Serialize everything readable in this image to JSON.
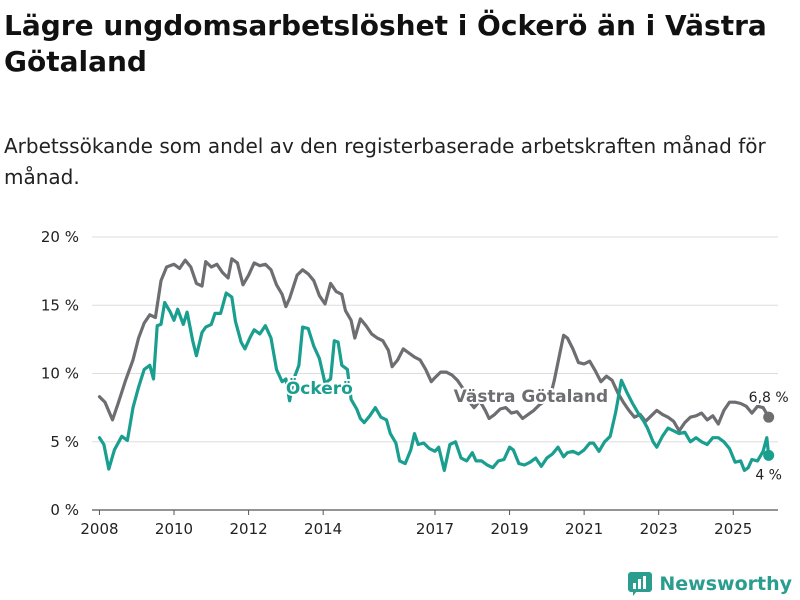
{
  "title": "Lägre ungdomsarbetslöshet i Öckerö än i Västra Götaland",
  "subtitle": "Arbetssökande som andel av den registerbaserade arbetskraften månad för månad.",
  "brand": "Newsworthy",
  "colors": {
    "ockero": "#1a9e8f",
    "vg": "#6e6e72",
    "grid": "#dddddd",
    "axis": "#555555"
  },
  "chart_data": {
    "type": "line",
    "title": "Lägre ungdomsarbetslöshet i Öckerö än i Västra Götaland",
    "subtitle": "Arbetssökande som andel av den registerbaserade arbetskraften månad för månad.",
    "xlabel": "",
    "ylabel": "",
    "ylim": [
      0,
      20
    ],
    "xlim": [
      2007.8,
      2026.2
    ],
    "grid": true,
    "y_ticks": [
      {
        "value": 0,
        "label": "0 %"
      },
      {
        "value": 5,
        "label": "5 %"
      },
      {
        "value": 10,
        "label": "10 %"
      },
      {
        "value": 15,
        "label": "15 %"
      },
      {
        "value": 20,
        "label": "20 %"
      }
    ],
    "x_ticks": [
      {
        "value": 2008,
        "label": "2008"
      },
      {
        "value": 2010,
        "label": "2010"
      },
      {
        "value": 2012,
        "label": "2012"
      },
      {
        "value": 2014,
        "label": "2014"
      },
      {
        "value": 2017,
        "label": "2017"
      },
      {
        "value": 2019,
        "label": "2019"
      },
      {
        "value": 2021,
        "label": "2021"
      },
      {
        "value": 2023,
        "label": "2023"
      },
      {
        "value": 2025,
        "label": "2025"
      }
    ],
    "series": [
      {
        "name": "Västra Götaland",
        "color": "#6e6e72",
        "label_at": {
          "x": 2017.5,
          "y": 7.9
        },
        "end_label": "6,8 %",
        "points": [
          [
            2008.0,
            8.3
          ],
          [
            2008.15,
            7.9
          ],
          [
            2008.35,
            6.6
          ],
          [
            2008.5,
            7.8
          ],
          [
            2008.7,
            9.5
          ],
          [
            2008.9,
            11.0
          ],
          [
            2009.05,
            12.6
          ],
          [
            2009.2,
            13.7
          ],
          [
            2009.35,
            14.3
          ],
          [
            2009.5,
            14.1
          ],
          [
            2009.65,
            16.8
          ],
          [
            2009.8,
            17.8
          ],
          [
            2010.0,
            18.0
          ],
          [
            2010.15,
            17.7
          ],
          [
            2010.3,
            18.3
          ],
          [
            2010.45,
            17.8
          ],
          [
            2010.6,
            16.6
          ],
          [
            2010.75,
            16.4
          ],
          [
            2010.85,
            18.2
          ],
          [
            2011.0,
            17.8
          ],
          [
            2011.15,
            18.0
          ],
          [
            2011.3,
            17.4
          ],
          [
            2011.45,
            17.0
          ],
          [
            2011.55,
            18.4
          ],
          [
            2011.7,
            18.1
          ],
          [
            2011.85,
            16.5
          ],
          [
            2012.0,
            17.2
          ],
          [
            2012.15,
            18.1
          ],
          [
            2012.3,
            17.9
          ],
          [
            2012.45,
            18.0
          ],
          [
            2012.6,
            17.6
          ],
          [
            2012.75,
            16.5
          ],
          [
            2012.9,
            15.8
          ],
          [
            2013.0,
            14.9
          ],
          [
            2013.1,
            15.5
          ],
          [
            2013.3,
            17.2
          ],
          [
            2013.45,
            17.6
          ],
          [
            2013.6,
            17.3
          ],
          [
            2013.75,
            16.8
          ],
          [
            2013.9,
            15.7
          ],
          [
            2014.05,
            15.1
          ],
          [
            2014.2,
            16.6
          ],
          [
            2014.35,
            16.0
          ],
          [
            2014.5,
            15.8
          ],
          [
            2014.6,
            14.6
          ],
          [
            2014.75,
            13.9
          ],
          [
            2014.85,
            12.6
          ],
          [
            2015.0,
            14.0
          ],
          [
            2015.15,
            13.5
          ],
          [
            2015.3,
            12.9
          ],
          [
            2015.45,
            12.6
          ],
          [
            2015.6,
            12.4
          ],
          [
            2015.75,
            11.7
          ],
          [
            2015.85,
            10.5
          ],
          [
            2016.0,
            11.0
          ],
          [
            2016.15,
            11.8
          ],
          [
            2016.3,
            11.5
          ],
          [
            2016.45,
            11.2
          ],
          [
            2016.6,
            11.0
          ],
          [
            2016.75,
            10.3
          ],
          [
            2016.9,
            9.4
          ],
          [
            2017.0,
            9.7
          ],
          [
            2017.15,
            10.1
          ],
          [
            2017.3,
            10.1
          ],
          [
            2017.45,
            9.9
          ],
          [
            2017.6,
            9.5
          ],
          [
            2017.75,
            8.9
          ],
          [
            2017.9,
            8.0
          ],
          [
            2018.05,
            7.5
          ],
          [
            2018.2,
            8.0
          ],
          [
            2018.35,
            7.3
          ],
          [
            2018.45,
            6.7
          ],
          [
            2018.6,
            7.0
          ],
          [
            2018.75,
            7.4
          ],
          [
            2018.9,
            7.5
          ],
          [
            2019.05,
            7.1
          ],
          [
            2019.2,
            7.2
          ],
          [
            2019.35,
            6.7
          ],
          [
            2019.5,
            7.0
          ],
          [
            2019.65,
            7.3
          ],
          [
            2019.8,
            7.7
          ],
          [
            2019.95,
            8.0
          ],
          [
            2020.1,
            8.4
          ],
          [
            2020.2,
            9.5
          ],
          [
            2020.35,
            11.5
          ],
          [
            2020.45,
            12.8
          ],
          [
            2020.55,
            12.6
          ],
          [
            2020.7,
            11.8
          ],
          [
            2020.85,
            10.8
          ],
          [
            2021.0,
            10.7
          ],
          [
            2021.15,
            10.9
          ],
          [
            2021.3,
            10.2
          ],
          [
            2021.45,
            9.4
          ],
          [
            2021.6,
            9.8
          ],
          [
            2021.75,
            9.5
          ],
          [
            2021.9,
            8.6
          ],
          [
            2022.05,
            7.9
          ],
          [
            2022.2,
            7.3
          ],
          [
            2022.35,
            6.8
          ],
          [
            2022.5,
            7.0
          ],
          [
            2022.65,
            6.5
          ],
          [
            2022.8,
            6.9
          ],
          [
            2022.95,
            7.3
          ],
          [
            2023.1,
            7.0
          ],
          [
            2023.25,
            6.8
          ],
          [
            2023.4,
            6.5
          ],
          [
            2023.55,
            5.8
          ],
          [
            2023.7,
            6.4
          ],
          [
            2023.85,
            6.8
          ],
          [
            2024.0,
            6.9
          ],
          [
            2024.15,
            7.1
          ],
          [
            2024.3,
            6.6
          ],
          [
            2024.45,
            6.9
          ],
          [
            2024.6,
            6.3
          ],
          [
            2024.75,
            7.3
          ],
          [
            2024.9,
            7.9
          ],
          [
            2025.05,
            7.9
          ],
          [
            2025.2,
            7.8
          ],
          [
            2025.35,
            7.6
          ],
          [
            2025.5,
            7.1
          ],
          [
            2025.65,
            7.6
          ],
          [
            2025.8,
            7.5
          ],
          [
            2025.95,
            6.8
          ]
        ]
      },
      {
        "name": "Öckerö",
        "color": "#1a9e8f",
        "label_at": {
          "x": 2013.0,
          "y": 8.5
        },
        "end_label": "4 %",
        "points": [
          [
            2008.0,
            5.3
          ],
          [
            2008.12,
            4.8
          ],
          [
            2008.25,
            3.0
          ],
          [
            2008.4,
            4.4
          ],
          [
            2008.6,
            5.4
          ],
          [
            2008.75,
            5.1
          ],
          [
            2008.9,
            7.5
          ],
          [
            2009.05,
            9.0
          ],
          [
            2009.2,
            10.3
          ],
          [
            2009.35,
            10.6
          ],
          [
            2009.45,
            9.6
          ],
          [
            2009.55,
            13.5
          ],
          [
            2009.65,
            13.6
          ],
          [
            2009.75,
            15.2
          ],
          [
            2009.9,
            14.5
          ],
          [
            2010.0,
            13.9
          ],
          [
            2010.1,
            14.7
          ],
          [
            2010.25,
            13.6
          ],
          [
            2010.35,
            14.5
          ],
          [
            2010.5,
            12.4
          ],
          [
            2010.6,
            11.3
          ],
          [
            2010.75,
            13.0
          ],
          [
            2010.85,
            13.4
          ],
          [
            2011.0,
            13.6
          ],
          [
            2011.1,
            14.4
          ],
          [
            2011.25,
            14.4
          ],
          [
            2011.4,
            15.9
          ],
          [
            2011.55,
            15.6
          ],
          [
            2011.65,
            13.8
          ],
          [
            2011.8,
            12.3
          ],
          [
            2011.9,
            11.8
          ],
          [
            2012.05,
            12.7
          ],
          [
            2012.15,
            13.2
          ],
          [
            2012.3,
            12.9
          ],
          [
            2012.45,
            13.5
          ],
          [
            2012.6,
            12.6
          ],
          [
            2012.75,
            10.3
          ],
          [
            2012.9,
            9.4
          ],
          [
            2013.0,
            9.6
          ],
          [
            2013.1,
            8.0
          ],
          [
            2013.2,
            9.5
          ],
          [
            2013.35,
            10.6
          ],
          [
            2013.45,
            13.4
          ],
          [
            2013.6,
            13.3
          ],
          [
            2013.75,
            12.0
          ],
          [
            2013.9,
            11.1
          ],
          [
            2014.05,
            9.3
          ],
          [
            2014.2,
            9.6
          ],
          [
            2014.3,
            12.4
          ],
          [
            2014.4,
            12.3
          ],
          [
            2014.5,
            10.6
          ],
          [
            2014.65,
            10.3
          ],
          [
            2014.75,
            8.1
          ],
          [
            2014.9,
            7.4
          ],
          [
            2015.0,
            6.7
          ],
          [
            2015.1,
            6.4
          ],
          [
            2015.25,
            6.9
          ],
          [
            2015.4,
            7.5
          ],
          [
            2015.55,
            6.8
          ],
          [
            2015.7,
            6.6
          ],
          [
            2015.8,
            5.6
          ],
          [
            2015.95,
            4.9
          ],
          [
            2016.05,
            3.6
          ],
          [
            2016.2,
            3.4
          ],
          [
            2016.35,
            4.4
          ],
          [
            2016.45,
            5.6
          ],
          [
            2016.55,
            4.8
          ],
          [
            2016.7,
            4.9
          ],
          [
            2016.85,
            4.5
          ],
          [
            2017.0,
            4.3
          ],
          [
            2017.1,
            4.6
          ],
          [
            2017.25,
            2.9
          ],
          [
            2017.4,
            4.8
          ],
          [
            2017.55,
            5.0
          ],
          [
            2017.7,
            3.8
          ],
          [
            2017.85,
            3.6
          ],
          [
            2018.0,
            4.2
          ],
          [
            2018.1,
            3.6
          ],
          [
            2018.25,
            3.6
          ],
          [
            2018.4,
            3.3
          ],
          [
            2018.55,
            3.1
          ],
          [
            2018.7,
            3.6
          ],
          [
            2018.85,
            3.7
          ],
          [
            2019.0,
            4.6
          ],
          [
            2019.1,
            4.4
          ],
          [
            2019.25,
            3.4
          ],
          [
            2019.4,
            3.3
          ],
          [
            2019.55,
            3.5
          ],
          [
            2019.7,
            3.8
          ],
          [
            2019.85,
            3.2
          ],
          [
            2020.0,
            3.8
          ],
          [
            2020.15,
            4.1
          ],
          [
            2020.3,
            4.6
          ],
          [
            2020.45,
            3.9
          ],
          [
            2020.55,
            4.2
          ],
          [
            2020.7,
            4.3
          ],
          [
            2020.85,
            4.1
          ],
          [
            2021.0,
            4.4
          ],
          [
            2021.15,
            4.9
          ],
          [
            2021.25,
            4.9
          ],
          [
            2021.4,
            4.3
          ],
          [
            2021.55,
            5.0
          ],
          [
            2021.7,
            5.4
          ],
          [
            2021.85,
            7.2
          ],
          [
            2022.0,
            9.5
          ],
          [
            2022.15,
            8.6
          ],
          [
            2022.3,
            7.8
          ],
          [
            2022.45,
            7.1
          ],
          [
            2022.6,
            6.5
          ],
          [
            2022.7,
            6.0
          ],
          [
            2022.85,
            5.0
          ],
          [
            2022.95,
            4.6
          ],
          [
            2023.1,
            5.4
          ],
          [
            2023.25,
            6.0
          ],
          [
            2023.4,
            5.8
          ],
          [
            2023.55,
            5.6
          ],
          [
            2023.7,
            5.7
          ],
          [
            2023.85,
            5.0
          ],
          [
            2024.0,
            5.3
          ],
          [
            2024.15,
            5.0
          ],
          [
            2024.3,
            4.8
          ],
          [
            2024.45,
            5.3
          ],
          [
            2024.6,
            5.3
          ],
          [
            2024.75,
            5.0
          ],
          [
            2024.9,
            4.5
          ],
          [
            2025.05,
            3.5
          ],
          [
            2025.2,
            3.6
          ],
          [
            2025.3,
            2.9
          ],
          [
            2025.4,
            3.1
          ],
          [
            2025.5,
            3.7
          ],
          [
            2025.65,
            3.6
          ],
          [
            2025.8,
            4.3
          ],
          [
            2025.9,
            5.3
          ],
          [
            2025.95,
            4.0
          ]
        ]
      }
    ]
  }
}
